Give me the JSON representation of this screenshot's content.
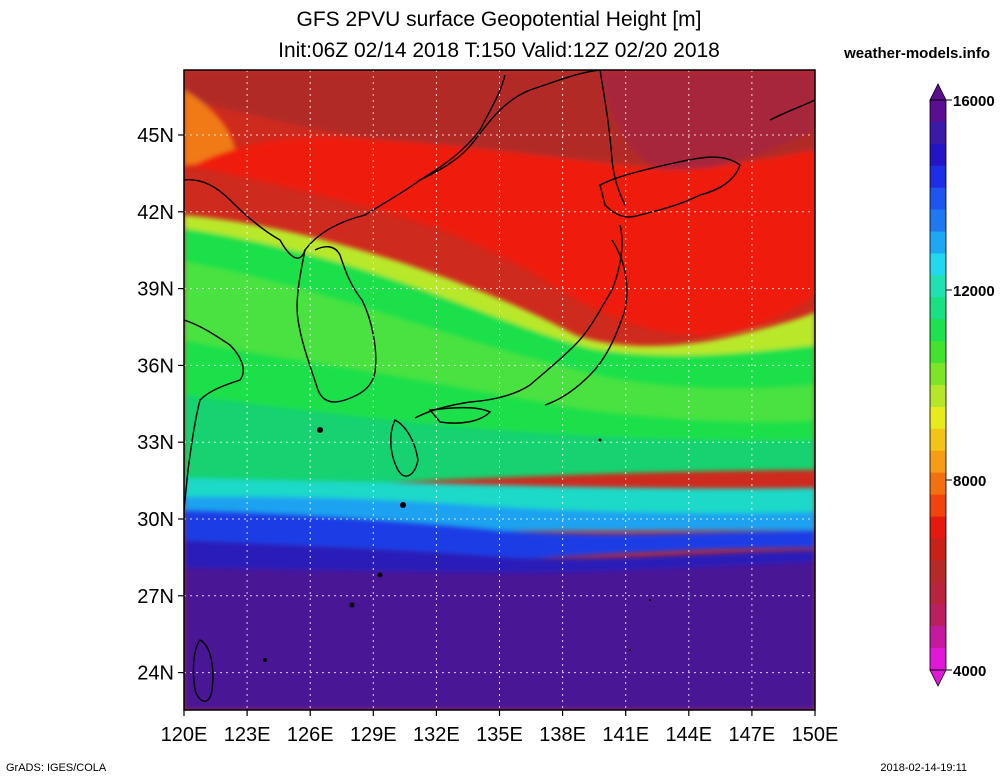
{
  "header": {
    "title_line1": "GFS 2PVU surface Geopotential Height [m]",
    "title_line2": "Init:06Z 02/14 2018 T:150 Valid:12Z 02/20 2018",
    "site": "weather-models.info"
  },
  "map": {
    "lat_labels": [
      "45N",
      "42N",
      "39N",
      "36N",
      "33N",
      "30N",
      "27N",
      "24N"
    ],
    "lon_labels": [
      "120E",
      "123E",
      "126E",
      "129E",
      "132E",
      "135E",
      "138E",
      "141E",
      "144E",
      "147E",
      "150E"
    ],
    "field": "2PVU surface geopotential height",
    "units": "m"
  },
  "colorbar": {
    "labels": [
      "16000",
      "12000",
      "8000",
      "4000"
    ],
    "colors": [
      "#5a0f90",
      "#3a1aa6",
      "#2414c8",
      "#1e2ee6",
      "#1f55ee",
      "#2078f0",
      "#1fa8f2",
      "#22d8ef",
      "#20e2b0",
      "#19e080",
      "#1ee050",
      "#42e230",
      "#7ee428",
      "#b5e62a",
      "#e7ea1c",
      "#f2c418",
      "#f59d14",
      "#f37010",
      "#f0430e",
      "#e41910",
      "#c92018",
      "#b52a28",
      "#b8243e",
      "#ba2060",
      "#c51aa0",
      "#e018d8"
    ]
  },
  "footer": {
    "left": "GrADS: IGES/COLA",
    "right": "2018-02-14-19:11"
  }
}
